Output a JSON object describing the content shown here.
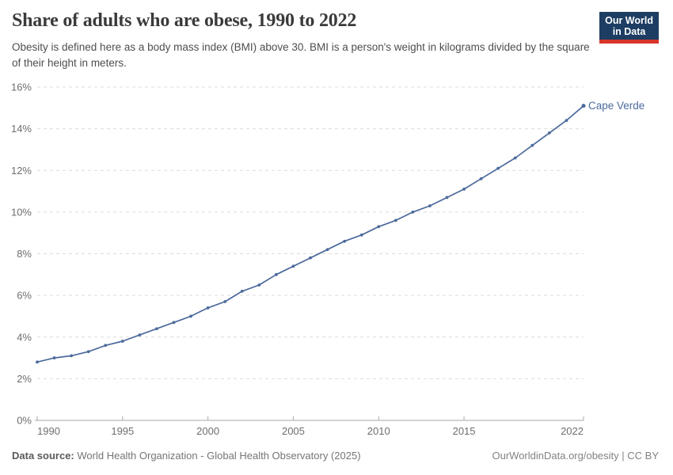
{
  "header": {
    "title": "Share of adults who are obese, 1990 to 2022",
    "subtitle": "Obesity is defined here as a body mass index (BMI) above 30. BMI is a person's weight in kilograms divided by the square of their height in meters.",
    "logo": {
      "line1": "Our World",
      "line2": "in Data"
    }
  },
  "chart_data": {
    "type": "line",
    "title": "Share of adults who are obese, 1990 to 2022",
    "xlabel": "",
    "ylabel": "",
    "xlim": [
      1990,
      2022
    ],
    "ylim": [
      0,
      16
    ],
    "x_ticks": [
      1990,
      1995,
      2000,
      2005,
      2010,
      2015,
      2022
    ],
    "y_ticks": [
      0,
      2,
      4,
      6,
      8,
      10,
      12,
      14,
      16
    ],
    "y_tick_suffix": "%",
    "grid": "horizontal-dashed",
    "legend": "end-of-line-label",
    "x": [
      1990,
      1991,
      1992,
      1993,
      1994,
      1995,
      1996,
      1997,
      1998,
      1999,
      2000,
      2001,
      2002,
      2003,
      2004,
      2005,
      2006,
      2007,
      2008,
      2009,
      2010,
      2011,
      2012,
      2013,
      2014,
      2015,
      2016,
      2017,
      2018,
      2019,
      2020,
      2021,
      2022
    ],
    "series": [
      {
        "name": "Cape Verde",
        "color": "#4C6A9C",
        "values": [
          2.8,
          3.0,
          3.1,
          3.3,
          3.6,
          3.8,
          4.1,
          4.4,
          4.7,
          5.0,
          5.4,
          5.7,
          6.2,
          6.5,
          7.0,
          7.4,
          7.8,
          8.2,
          8.6,
          8.9,
          9.3,
          9.6,
          10.0,
          10.3,
          10.7,
          11.1,
          11.6,
          12.1,
          12.6,
          13.2,
          13.8,
          14.4,
          15.1
        ]
      }
    ],
    "colors": {
      "gridline": "#dcdcdc",
      "axis": "#a9a9a9",
      "tick_label": "#6e6e6e"
    }
  },
  "footer": {
    "datasource_label": "Data source:",
    "datasource_text": "World Health Organization - Global Health Observatory (2025)",
    "credit": "OurWorldinData.org/obesity | CC BY"
  }
}
